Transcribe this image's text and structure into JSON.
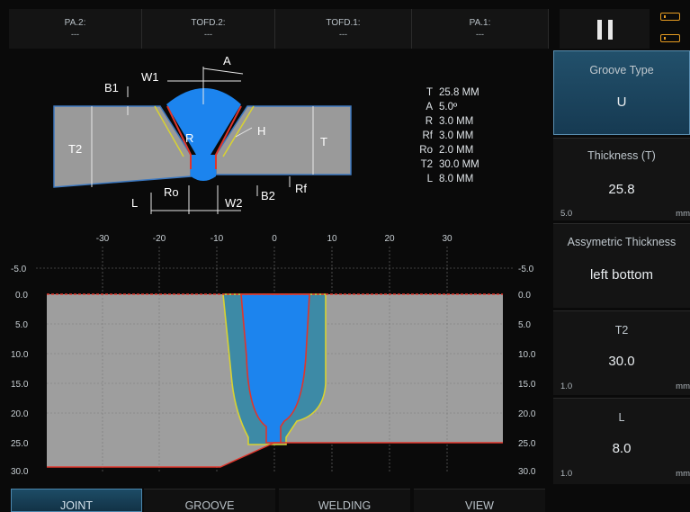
{
  "channels": [
    {
      "name": "PA.2:",
      "value": "---"
    },
    {
      "name": "TOFD.2:",
      "value": "---"
    },
    {
      "name": "TOFD.1:",
      "value": "---"
    },
    {
      "name": "PA.1:",
      "value": "---"
    }
  ],
  "schematic": {
    "labels": {
      "A": "A",
      "W1": "W1",
      "B1": "B1",
      "T2": "T2",
      "R": "R",
      "H": "H",
      "T": "T",
      "Rf": "Rf",
      "B2": "B2",
      "W2": "W2",
      "Ro": "Ro",
      "L": "L"
    }
  },
  "params": [
    {
      "key": "T",
      "value": "25.8 MM"
    },
    {
      "key": "A",
      "value": "5.0º"
    },
    {
      "key": "R",
      "value": "3.0 MM"
    },
    {
      "key": "Rf",
      "value": "3.0 MM"
    },
    {
      "key": "Ro",
      "value": "2.0 MM"
    },
    {
      "key": "T2",
      "value": "30.0 MM"
    },
    {
      "key": "L",
      "value": "8.0 MM"
    }
  ],
  "cross_section": {
    "x_ticks": [
      "-30",
      "-20",
      "-10",
      "0",
      "10",
      "20",
      "30"
    ],
    "y_ticks_left": [
      "-5.0",
      "0.0",
      "5.0",
      "10.0",
      "15.0",
      "20.0",
      "25.0",
      "30.0"
    ],
    "y_ticks_right": [
      "-5.0",
      "0.0",
      "5.0",
      "10.0",
      "15.0",
      "20.0",
      "25.0",
      "30.0"
    ]
  },
  "right_panel": {
    "groove_type": {
      "title": "Groove Type",
      "value": "U"
    },
    "thickness": {
      "title": "Thickness (T)",
      "value": "25.8",
      "min": "5.0",
      "unit": "mm"
    },
    "asymmetric": {
      "title": "Assymetric Thickness",
      "value": "left bottom"
    },
    "t2": {
      "title": "T2",
      "value": "30.0",
      "min": "1.0",
      "unit": "mm"
    },
    "l": {
      "title": "L",
      "value": "8.0",
      "min": "1.0",
      "unit": "mm"
    }
  },
  "tabs": [
    "JOINT",
    "GROOVE",
    "WELDING",
    "VIEW"
  ],
  "colors": {
    "accent": "#1c84ee",
    "plate": "#9e9e9e",
    "outline_red": "#e0352b",
    "outline_yellow": "#d8d232",
    "haz": "#3d8aa6"
  }
}
